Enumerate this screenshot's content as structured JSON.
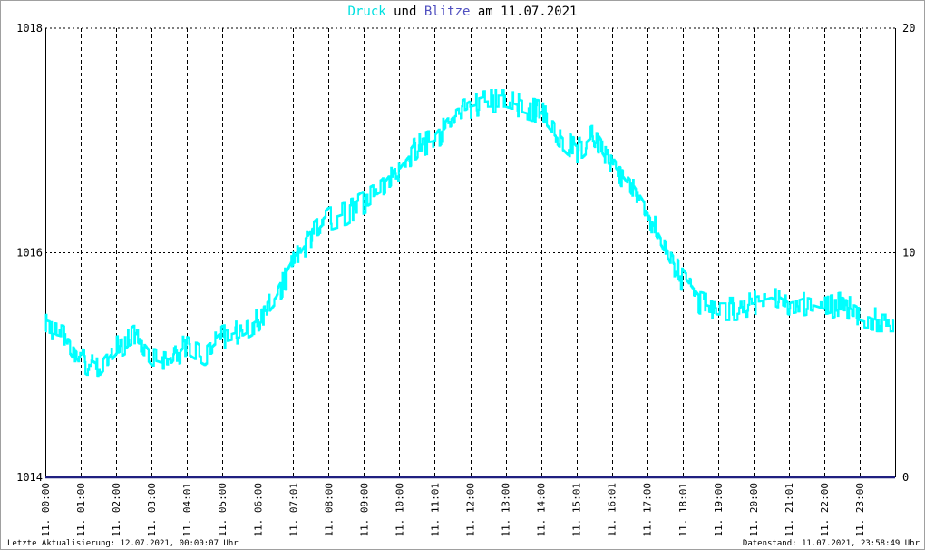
{
  "header": {
    "title_part1": "Druck",
    "title_part2": " und ",
    "title_part3": "Blitze",
    "title_part4": " am 11.07.2021"
  },
  "footer": {
    "last_update": "Letzte Aktualisierung: 12.07.2021, 00:00:07 Uhr",
    "data_status": "Datenstand: 11.07.2021, 23:58:49 Uhr"
  },
  "colors": {
    "pressure": "#00ffff",
    "lightning": "#202080",
    "grid": "#000000",
    "axis": "#000000"
  },
  "chart_data": {
    "type": "line",
    "title": "Druck und Blitze am 11.07.2021",
    "x_tick_labels": [
      "11. 00:00",
      "11. 01:00",
      "11. 02:00",
      "11. 03:00",
      "11. 04:01",
      "11. 05:00",
      "11. 06:00",
      "11. 07:01",
      "11. 08:00",
      "11. 09:00",
      "11. 10:00",
      "11. 11:01",
      "11. 12:00",
      "11. 13:00",
      "11. 14:00",
      "11. 15:01",
      "11. 16:01",
      "11. 17:00",
      "11. 18:01",
      "11. 19:00",
      "11. 20:00",
      "11. 21:01",
      "11. 22:00",
      "11. 23:00"
    ],
    "y_left": {
      "label": "",
      "ticks": [
        "1014",
        "1016",
        "1018"
      ],
      "range": [
        1014,
        1018
      ]
    },
    "y_right": {
      "label": "",
      "ticks": [
        "0",
        "10",
        "20"
      ],
      "range": [
        0,
        20
      ]
    },
    "grid": true,
    "series": [
      {
        "name": "Druck",
        "axis": "left",
        "color": "#00ffff",
        "x_hours": [
          0,
          0.5,
          1,
          1.5,
          2,
          2.5,
          3,
          3.5,
          4,
          4.5,
          5,
          5.5,
          6,
          6.5,
          7,
          7.5,
          8,
          8.5,
          9,
          9.5,
          10,
          10.5,
          11,
          11.5,
          12,
          12.5,
          13,
          13.5,
          14,
          14.5,
          15,
          15.5,
          16,
          16.5,
          17,
          17.5,
          18,
          18.5,
          19,
          19.5,
          20,
          20.5,
          21,
          21.5,
          22,
          22.5,
          23,
          23.5,
          23.97
        ],
        "values": [
          1015.35,
          1015.3,
          1015.05,
          1014.95,
          1015.15,
          1015.25,
          1015.05,
          1015.0,
          1015.2,
          1015.1,
          1015.25,
          1015.3,
          1015.4,
          1015.6,
          1015.9,
          1016.15,
          1016.3,
          1016.35,
          1016.45,
          1016.55,
          1016.75,
          1016.95,
          1017.0,
          1017.2,
          1017.3,
          1017.35,
          1017.35,
          1017.3,
          1017.25,
          1017.05,
          1016.9,
          1017.05,
          1016.8,
          1016.6,
          1016.35,
          1016.05,
          1015.75,
          1015.55,
          1015.5,
          1015.5,
          1015.55,
          1015.6,
          1015.5,
          1015.55,
          1015.5,
          1015.55,
          1015.45,
          1015.4,
          1015.4
        ]
      },
      {
        "name": "Blitze",
        "axis": "right",
        "color": "#202080",
        "x_hours": [
          0,
          24
        ],
        "values": [
          0,
          0
        ]
      }
    ]
  }
}
